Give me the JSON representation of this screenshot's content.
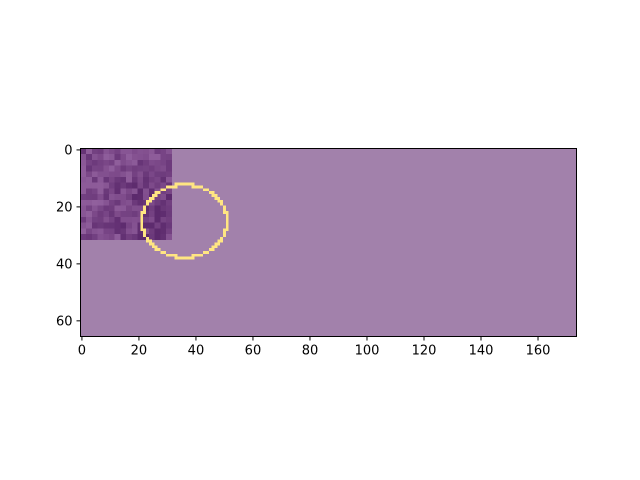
{
  "figure": {
    "background": "#ffffff"
  },
  "chart_data": {
    "type": "heatmap",
    "title": "",
    "xlabel": "",
    "ylabel": "",
    "image_extent": {
      "x": [
        0,
        174
      ],
      "y": [
        0,
        66
      ]
    },
    "xlim": [
      -0.5,
      173.5
    ],
    "ylim": [
      65.5,
      -0.5
    ],
    "y_axis_inverted": true,
    "x_ticks": [
      0,
      20,
      40,
      60,
      80,
      100,
      120,
      140,
      160
    ],
    "y_ticks": [
      0,
      20,
      40,
      60
    ],
    "x_tick_labels": [
      "0",
      "20",
      "40",
      "60",
      "80",
      "100",
      "120",
      "140",
      "160"
    ],
    "y_tick_labels": [
      "0",
      "20",
      "40",
      "60"
    ],
    "grid": false,
    "background_fill": "#a281ab",
    "region_patch": {
      "x_range": [
        0,
        32
      ],
      "y_range": [
        0,
        32
      ],
      "colormap": "purple texture",
      "base_color": "#7d4a8a",
      "dark_color": "#5c2a6d",
      "light_color": "#9a6aa6"
    },
    "contour": {
      "shape": "circle",
      "center": [
        36,
        25
      ],
      "radius": 15,
      "color": "#ffe682",
      "pixelated": true
    }
  }
}
